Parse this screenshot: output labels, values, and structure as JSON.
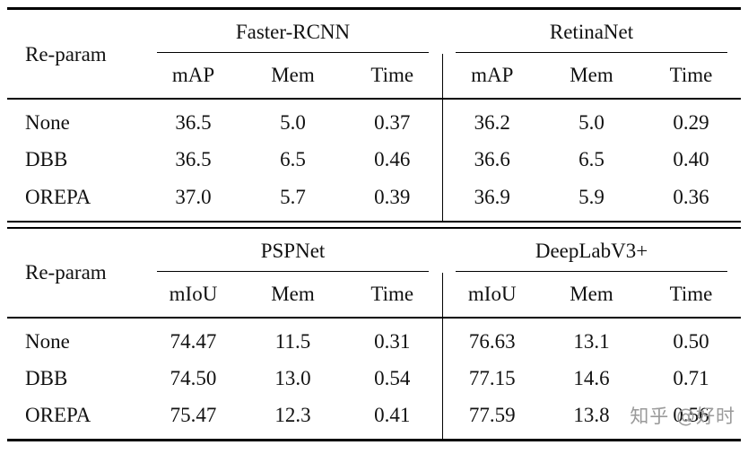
{
  "watermark": {
    "text": "知乎 @好时",
    "color": "#9a9a9a"
  },
  "tables": [
    {
      "corner_header": "Re-param",
      "groups": [
        {
          "label": "Faster-RCNN",
          "metrics": [
            "mAP",
            "Mem",
            "Time"
          ]
        },
        {
          "label": "RetinaNet",
          "metrics": [
            "mAP",
            "Mem",
            "Time"
          ]
        }
      ],
      "rows": [
        {
          "label": "None",
          "values": [
            "36.5",
            "5.0",
            "0.37",
            "36.2",
            "5.0",
            "0.29"
          ]
        },
        {
          "label": "DBB",
          "values": [
            "36.5",
            "6.5",
            "0.46",
            "36.6",
            "6.5",
            "0.40"
          ]
        },
        {
          "label": "OREPA",
          "values": [
            "37.0",
            "5.7",
            "0.39",
            "36.9",
            "5.9",
            "0.36"
          ]
        }
      ]
    },
    {
      "corner_header": "Re-param",
      "groups": [
        {
          "label": "PSPNet",
          "metrics": [
            "mIoU",
            "Mem",
            "Time"
          ]
        },
        {
          "label": "DeepLabV3+",
          "metrics": [
            "mIoU",
            "Mem",
            "Time"
          ]
        }
      ],
      "rows": [
        {
          "label": "None",
          "values": [
            "74.47",
            "11.5",
            "0.31",
            "76.63",
            "13.1",
            "0.50"
          ]
        },
        {
          "label": "DBB",
          "values": [
            "74.50",
            "13.0",
            "0.54",
            "77.15",
            "14.6",
            "0.71"
          ]
        },
        {
          "label": "OREPA",
          "values": [
            "75.47",
            "12.3",
            "0.41",
            "77.59",
            "13.8",
            "0.56"
          ]
        }
      ]
    }
  ]
}
